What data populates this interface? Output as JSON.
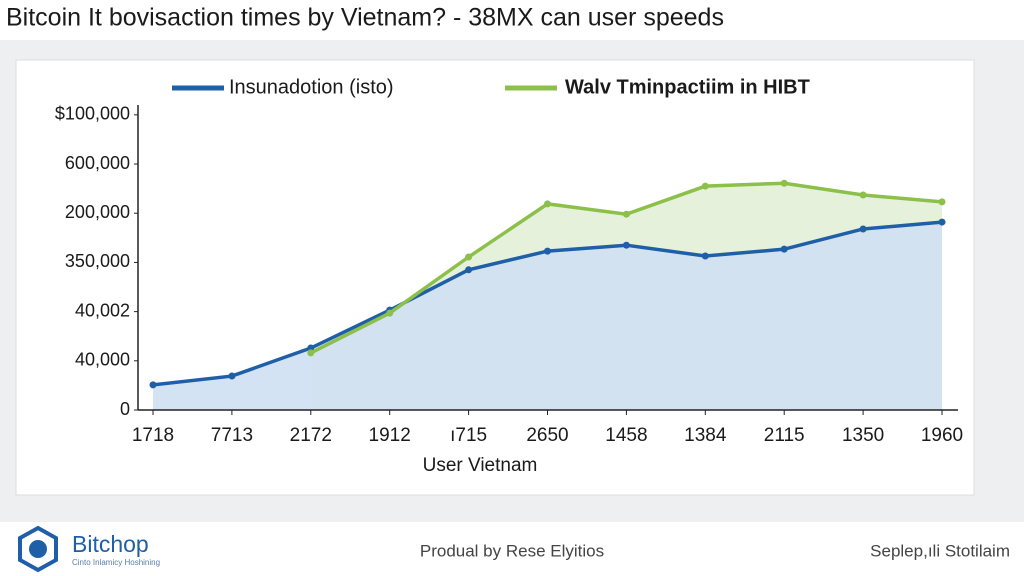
{
  "chart_data": {
    "type": "line",
    "title": "Bitcoin It bovisaction times by Vietnam? - 38MX can user speeds",
    "xlabel": "User Vietnam",
    "categories": [
      "1718",
      "7713",
      "2172",
      "1912",
      "ı715",
      "2650",
      "1458",
      "1384",
      "2115",
      "1350",
      "1960"
    ],
    "series": [
      {
        "name": "Insunadotion (isto)",
        "color": "#1f5fa8",
        "area_color": "#cfe0f3",
        "values": [
          0.51,
          0.69,
          1.26,
          2.03,
          2.85,
          3.23,
          3.35,
          3.13,
          3.27,
          3.68,
          3.82
        ]
      },
      {
        "name": "Walv Tminpactiim in HIBT",
        "color": "#8cc04a",
        "area_color": "#e3efd8",
        "values": [
          null,
          null,
          1.16,
          1.97,
          3.11,
          4.19,
          3.98,
          4.55,
          4.61,
          4.37,
          4.23
        ]
      }
    ],
    "ylim": [
      0,
      6.2
    ],
    "yticks": [
      0,
      {
        "value": 1,
        "label": "40,000"
      },
      {
        "value": 2,
        "label": "40,002"
      },
      {
        "value": 3,
        "label": "350,000"
      },
      {
        "value": 4,
        "label": "200,000"
      },
      {
        "value": 5,
        "label": "600,000"
      },
      {
        "value": 6,
        "label": "$100,000"
      }
    ],
    "legend": "top"
  },
  "footer": {
    "brand": "Bitchop",
    "brand_tagline": "Cinto Inlamicy Hoshining",
    "credit": "Produal by Rese Elyitios",
    "source": "Seplep,ıli Stotilaim"
  }
}
